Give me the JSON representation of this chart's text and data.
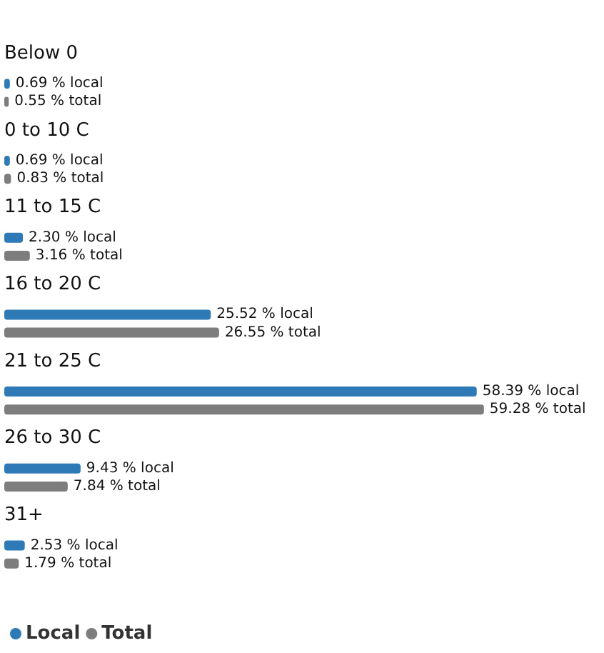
{
  "chart_data": {
    "type": "bar",
    "orientation": "horizontal",
    "legend": "bottom left",
    "categories": [
      "Below 0",
      "0 to 10 C",
      "11 to 15 C",
      "16 to 20 C",
      "21 to 25 C",
      "26 to 30 C",
      "31+"
    ],
    "series": [
      {
        "name": "Local",
        "color": "#2e7ab6",
        "values": [
          0.69,
          0.69,
          2.3,
          25.52,
          58.39,
          9.43,
          2.53
        ],
        "value_labels": [
          "0.69 % local",
          "0.69 % local",
          "2.30 % local",
          "25.52 % local",
          "58.39 % local",
          "9.43 % local",
          "2.53 % local"
        ]
      },
      {
        "name": "Total",
        "color": "#7d7d7d",
        "values": [
          0.55,
          0.83,
          3.16,
          26.55,
          59.28,
          7.84,
          1.79
        ],
        "value_labels": [
          "0.55 % total",
          "0.83 % total",
          "3.16 % total",
          "26.55 % total",
          "59.28 % total",
          "7.84 % total",
          "1.79 % total"
        ]
      }
    ]
  }
}
